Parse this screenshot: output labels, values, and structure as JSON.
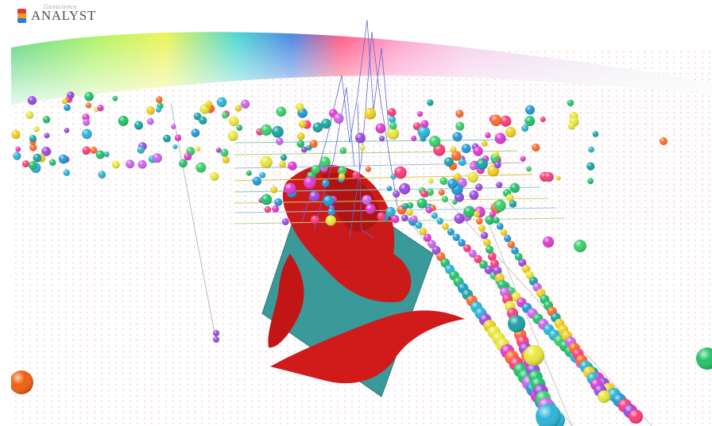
{
  "app": {
    "logo_subtitle": "Geoscience",
    "logo_title": "ANALYST"
  },
  "colors": {
    "surface_body": "#cc1a1a",
    "plane": "#2a9191",
    "plane_edge": "#1c6e6e",
    "drillhole_trace": "#5b6bd6",
    "background": "#ffffff"
  },
  "icons": [
    "app-logo-icon"
  ]
}
